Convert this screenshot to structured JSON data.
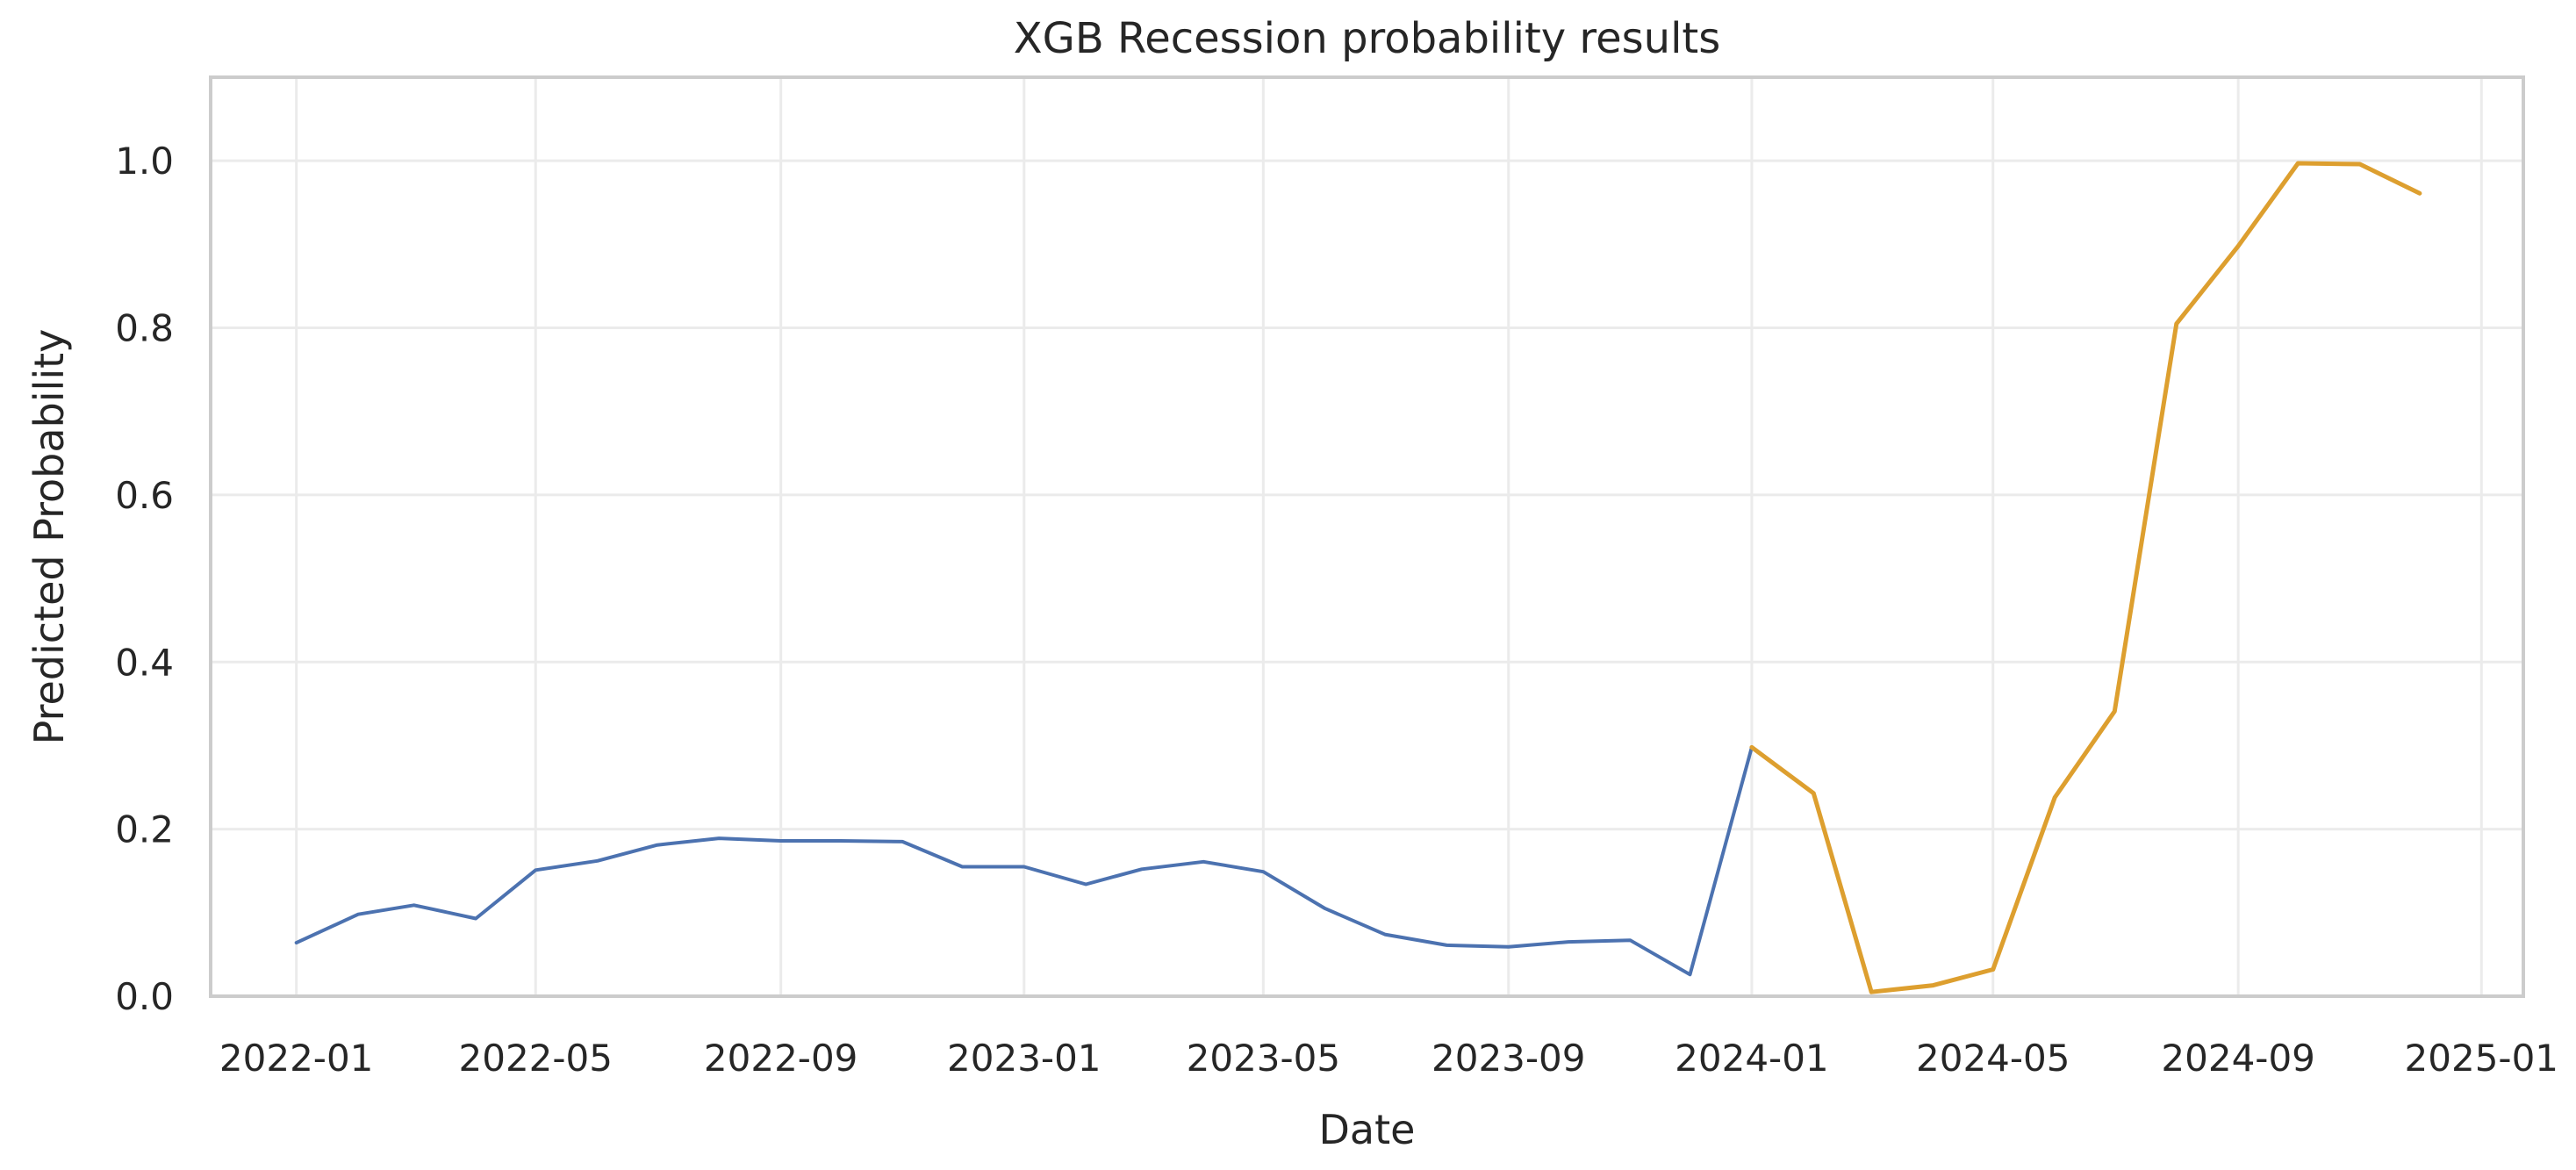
{
  "chart_data": {
    "type": "line",
    "title": "XGB Recession probability results",
    "xlabel": "Date",
    "ylabel": "Predicted Probability",
    "ylim": [
      0.0,
      1.1
    ],
    "xlim": [
      "2021-11-19",
      "2025-01-22"
    ],
    "grid": true,
    "yticks": [
      {
        "value": 0.0,
        "label": "0.0"
      },
      {
        "value": 0.2,
        "label": "0.2"
      },
      {
        "value": 0.4,
        "label": "0.4"
      },
      {
        "value": 0.6,
        "label": "0.6"
      },
      {
        "value": 0.8,
        "label": "0.8"
      },
      {
        "value": 1.0,
        "label": "1.0"
      }
    ],
    "xticks": [
      {
        "value": "2022-01-01",
        "label": "2022-01"
      },
      {
        "value": "2022-05-01",
        "label": "2022-05"
      },
      {
        "value": "2022-09-01",
        "label": "2022-09"
      },
      {
        "value": "2023-01-01",
        "label": "2023-01"
      },
      {
        "value": "2023-05-01",
        "label": "2023-05"
      },
      {
        "value": "2023-09-01",
        "label": "2023-09"
      },
      {
        "value": "2024-01-01",
        "label": "2024-01"
      },
      {
        "value": "2024-05-01",
        "label": "2024-05"
      },
      {
        "value": "2024-09-01",
        "label": "2024-09"
      },
      {
        "value": "2025-01-01",
        "label": "2025-01"
      }
    ],
    "series": [
      {
        "color": "#4c72b0",
        "x": [
          "2022-01-01",
          "2022-02-01",
          "2022-03-01",
          "2022-04-01",
          "2022-05-01",
          "2022-06-01",
          "2022-07-01",
          "2022-08-01",
          "2022-09-01",
          "2022-10-01",
          "2022-11-01",
          "2022-12-01",
          "2023-01-01",
          "2023-02-01",
          "2023-03-01",
          "2023-04-01",
          "2023-05-01",
          "2023-06-01",
          "2023-07-01",
          "2023-08-01",
          "2023-09-01",
          "2023-10-01",
          "2023-11-01",
          "2023-12-01",
          "2024-01-01"
        ],
        "values": [
          0.064,
          0.098,
          0.109,
          0.093,
          0.151,
          0.162,
          0.181,
          0.189,
          0.186,
          0.186,
          0.185,
          0.155,
          0.155,
          0.134,
          0.152,
          0.161,
          0.149,
          0.105,
          0.074,
          0.061,
          0.059,
          0.065,
          0.067,
          0.026,
          0.298
        ]
      },
      {
        "color": "#dd9f2f",
        "x": [
          "2024-01-01",
          "2024-02-01",
          "2024-03-01",
          "2024-04-01",
          "2024-05-01",
          "2024-06-01",
          "2024-07-01",
          "2024-08-01",
          "2024-09-01",
          "2024-10-01",
          "2024-11-01",
          "2024-12-01"
        ],
        "values": [
          0.298,
          0.243,
          0.005,
          0.013,
          0.032,
          0.238,
          0.341,
          0.805,
          0.898,
          0.997,
          0.996,
          0.961
        ]
      }
    ]
  }
}
